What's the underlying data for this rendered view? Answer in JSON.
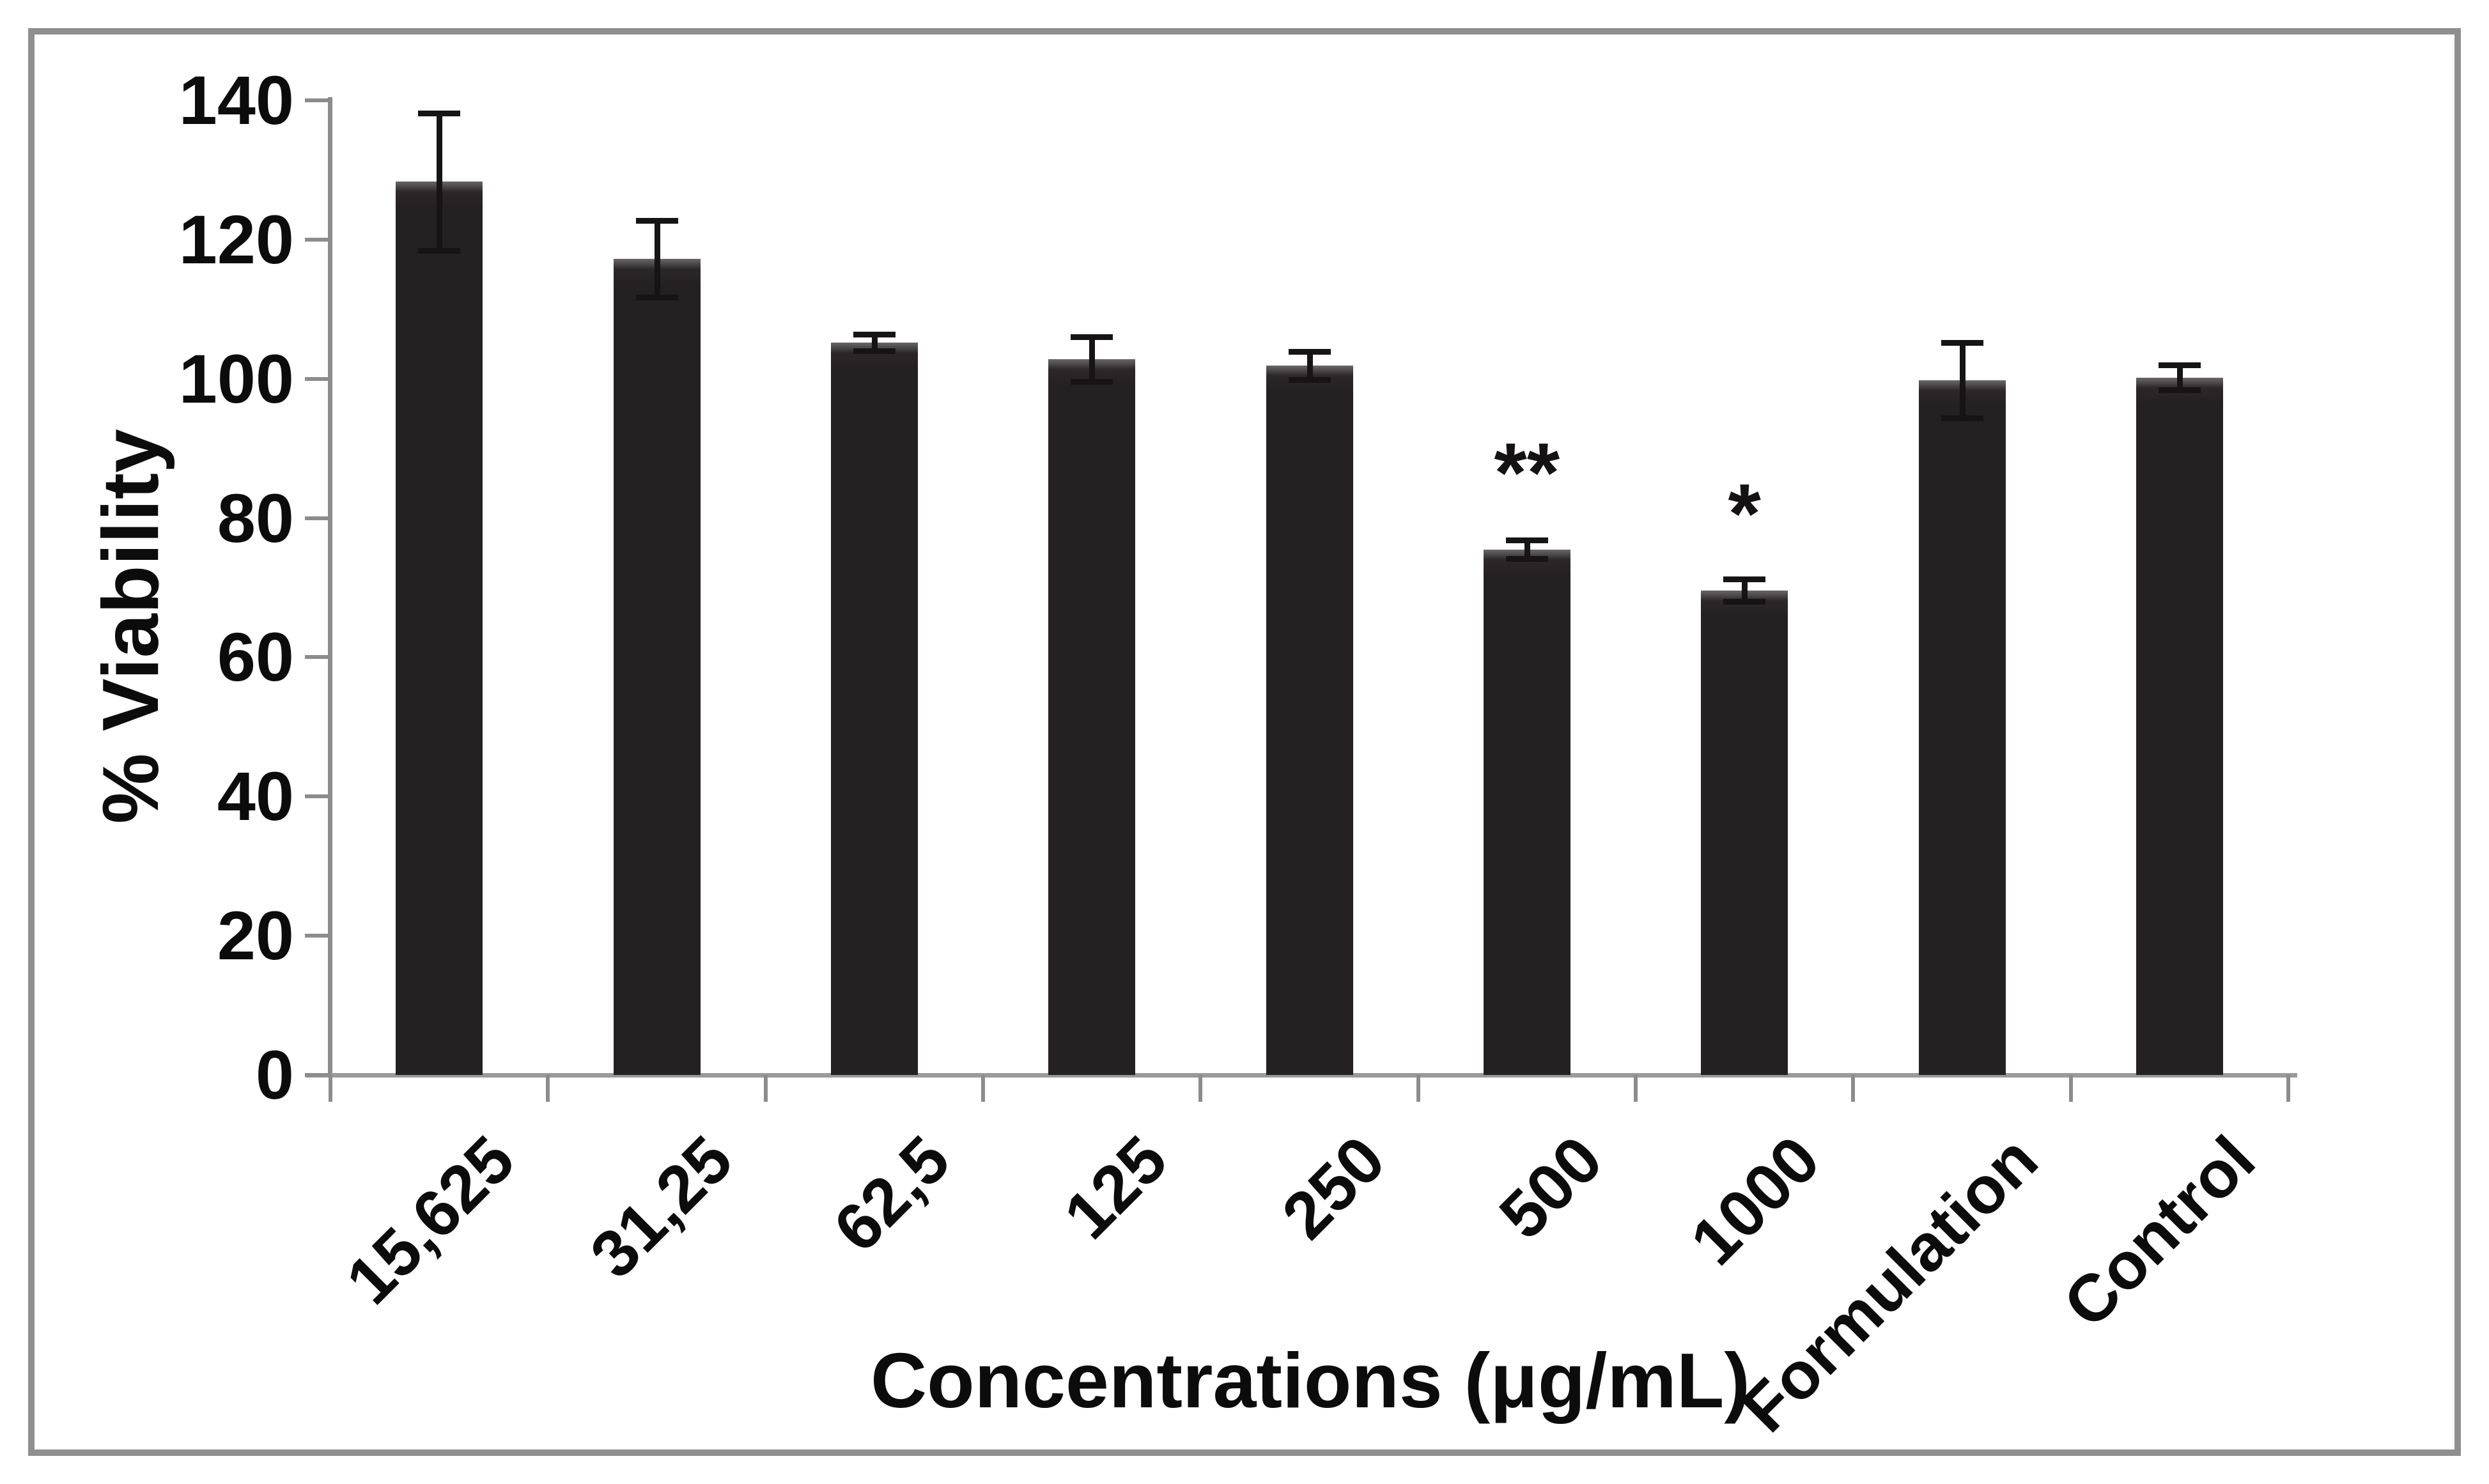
{
  "figure": {
    "background_color": "#ffffff",
    "border_color": "#8f8f8f",
    "bar_color": "#242122",
    "axis_color": "#8c8c8c",
    "error_bar_color": "#161414",
    "text_color": "#0c0c0c"
  },
  "chart_data": {
    "type": "bar",
    "title": "",
    "xlabel": "Concentrations (μg/mL)",
    "ylabel": "% Viability",
    "categories": [
      "15,625",
      "31,25",
      "62,5",
      "125",
      "250",
      "500",
      "1000",
      "Formulation",
      "Control"
    ],
    "series": [
      {
        "name": "% Viability",
        "values": [
          128.3,
          117.2,
          105.2,
          102.8,
          101.9,
          75.5,
          69.6,
          99.8,
          100.2
        ],
        "errors": [
          9.9,
          5.5,
          1.2,
          3.2,
          2.0,
          1.3,
          1.6,
          5.4,
          1.8
        ]
      }
    ],
    "annotations": [
      "",
      "",
      "",
      "",
      "",
      "**",
      "*",
      "",
      ""
    ],
    "ylim": [
      0,
      140
    ],
    "yticks": [
      0,
      20,
      40,
      60,
      80,
      100,
      120,
      140
    ],
    "grid": false,
    "legend": null,
    "significance_note_symbols": [
      "**",
      "*"
    ]
  }
}
